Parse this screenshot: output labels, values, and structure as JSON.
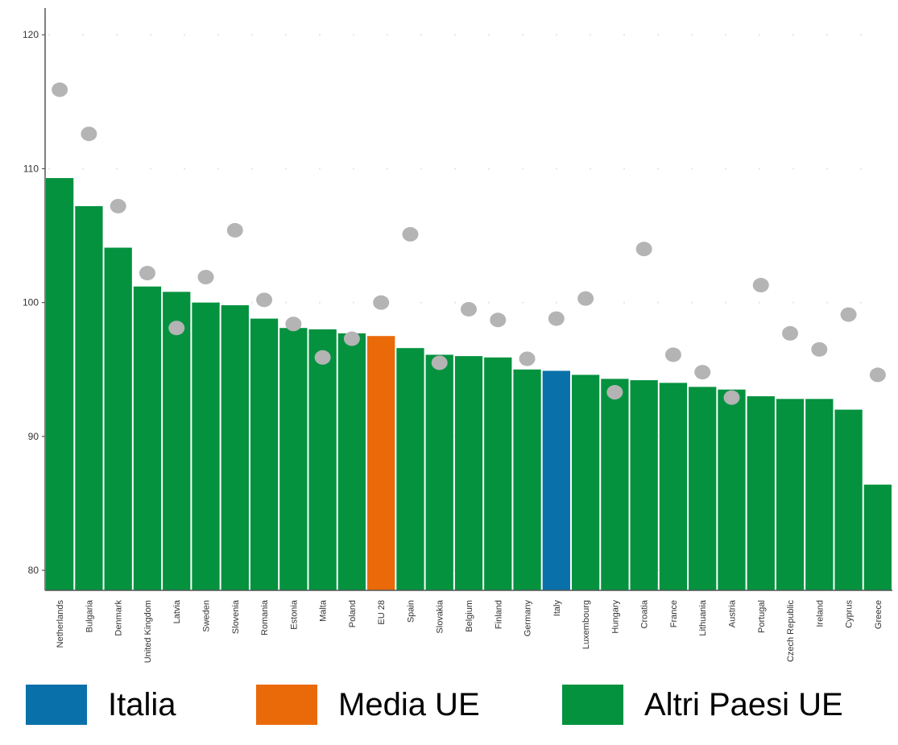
{
  "chart_data": {
    "type": "bar",
    "categories": [
      "Netherlands",
      "Bulgaria",
      "Denmark",
      "United Kingdom",
      "Latvia",
      "Sweden",
      "Slovenia",
      "Romania",
      "Estonia",
      "Malta",
      "Poland",
      "EU 28",
      "Spain",
      "Slovakia",
      "Belgium",
      "Finland",
      "Germany",
      "Italy",
      "Luxembourg",
      "Hungary",
      "Croatia",
      "France",
      "Lithuania",
      "Austria",
      "Portugal",
      "Czech Republic",
      "Ireland",
      "Cyprus",
      "Greece"
    ],
    "series": [
      {
        "type": "bar",
        "values": [
          109.3,
          107.2,
          104.1,
          101.2,
          100.8,
          100.0,
          99.8,
          98.8,
          98.1,
          98.0,
          97.7,
          97.5,
          96.6,
          96.1,
          96.0,
          95.9,
          95.0,
          94.9,
          94.6,
          94.3,
          94.2,
          94.0,
          93.7,
          93.5,
          93.0,
          92.8,
          92.8,
          92.0,
          86.4
        ]
      },
      {
        "type": "scatter",
        "values": [
          115.9,
          112.6,
          107.2,
          102.2,
          98.1,
          101.9,
          105.4,
          100.2,
          98.4,
          95.9,
          97.3,
          100.0,
          105.1,
          95.5,
          99.5,
          98.7,
          95.8,
          98.8,
          100.3,
          93.3,
          104.0,
          96.1,
          94.8,
          92.9,
          101.3,
          97.7,
          96.5,
          99.1,
          94.6
        ]
      }
    ],
    "ylim": [
      78.5,
      122
    ],
    "yticks": [
      80,
      90,
      100,
      110,
      120
    ],
    "colors": {
      "default_bar": "#04923f",
      "highlight_italy": "#0a70aa",
      "highlight_eu": "#ea6a0a",
      "dot": "#b4b4b4",
      "axis": "#555555",
      "grid_dots": "#e6e6e6"
    },
    "highlights": {
      "Italy": "highlight_italy",
      "EU 28": "highlight_eu"
    },
    "grid": true
  },
  "legend": [
    {
      "label": "Italia",
      "color": "#0a70aa"
    },
    {
      "label": "Media UE",
      "color": "#ea6a0a"
    },
    {
      "label": "Altri Paesi UE",
      "color": "#04923f"
    }
  ]
}
